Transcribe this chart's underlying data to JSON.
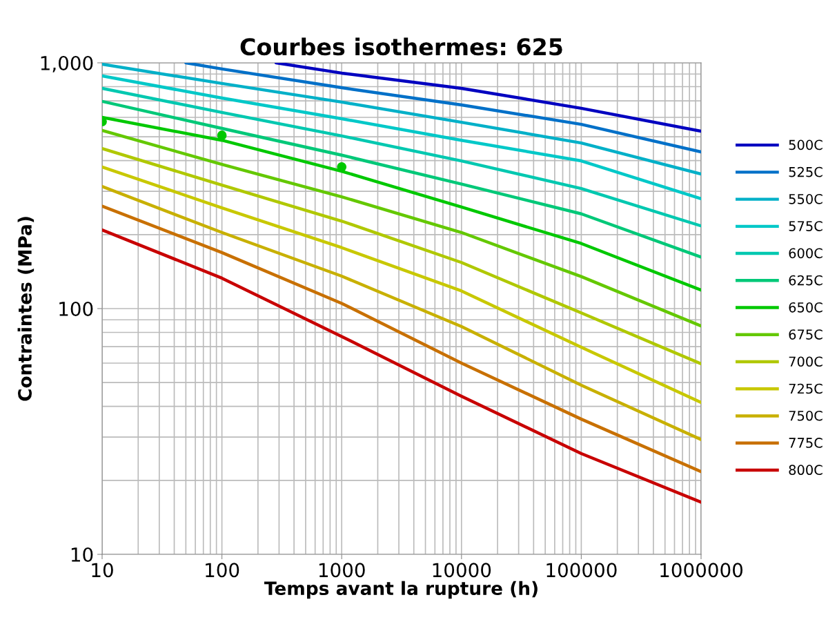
{
  "chart_data": {
    "type": "line",
    "title": "Courbes isothermes: 625",
    "xlabel": "Temps avant la rupture (h)",
    "ylabel": "Contraintes (MPa)",
    "log": "xy",
    "grid": true,
    "legend": "right",
    "marker": "none",
    "line_style": "solid",
    "xlim": [
      10,
      1000000
    ],
    "xticks": [
      10,
      100,
      1000,
      10000,
      100000,
      1000000
    ],
    "ylim": [
      10,
      1000
    ],
    "yticks": [
      10,
      100,
      {
        "value": 1000,
        "label": "1,000"
      }
    ],
    "x": [
      10,
      100,
      1000,
      10000,
      100000,
      1000000
    ],
    "series": [
      {
        "name": "500C",
        "color": "#0000c0",
        "x": [
          283,
          1000,
          10000,
          100000,
          1000000
        ],
        "values": [
          1000,
          908,
          787,
          653,
          527
        ]
      },
      {
        "name": "525C",
        "color": "#0070c8",
        "x": [
          50,
          100,
          1000,
          10000,
          100000,
          1000000
        ],
        "values": [
          1000,
          944,
          792,
          674,
          562,
          434
        ]
      },
      {
        "name": "550C",
        "color": "#00b0c8",
        "values": [
          987,
          824,
          692,
          573,
          472,
          353
        ]
      },
      {
        "name": "575C",
        "color": "#00c8c8",
        "values": [
          885,
          719,
          592,
          484,
          399,
          280
        ]
      },
      {
        "name": "600C",
        "color": "#00c8b0",
        "values": [
          787,
          628,
          504,
          399,
          308,
          217
        ]
      },
      {
        "name": "625C",
        "color": "#00c878",
        "values": [
          697,
          541,
          421,
          321,
          243,
          162
        ]
      },
      {
        "name": "650C",
        "color": "#00c800",
        "values": [
          600,
          484,
          362,
          259,
          184,
          119
        ]
      },
      {
        "name": "675C",
        "color": "#64c800",
        "values": [
          531,
          386,
          285,
          204,
          135,
          85
        ]
      },
      {
        "name": "700C",
        "color": "#b0c800",
        "values": [
          448,
          318,
          227,
          154,
          96,
          59.6
        ]
      },
      {
        "name": "725C",
        "color": "#c8c800",
        "values": [
          377,
          257,
          177,
          118,
          69.6,
          41.5
        ]
      },
      {
        "name": "750C",
        "color": "#c8b000",
        "values": [
          314,
          204,
          135.5,
          84.5,
          48.8,
          29.3
        ]
      },
      {
        "name": "775C",
        "color": "#c87000",
        "values": [
          261,
          169,
          105,
          60,
          35.5,
          21.7
        ]
      },
      {
        "name": "800C",
        "color": "#c80000",
        "values": [
          209,
          133,
          77,
          44,
          25.7,
          16.3
        ]
      },
      {
        "type": "scatter",
        "color": "#00c800",
        "marker": "circle",
        "x": [
          10,
          100,
          1000
        ],
        "values": [
          577,
          507,
          377
        ]
      }
    ]
  }
}
